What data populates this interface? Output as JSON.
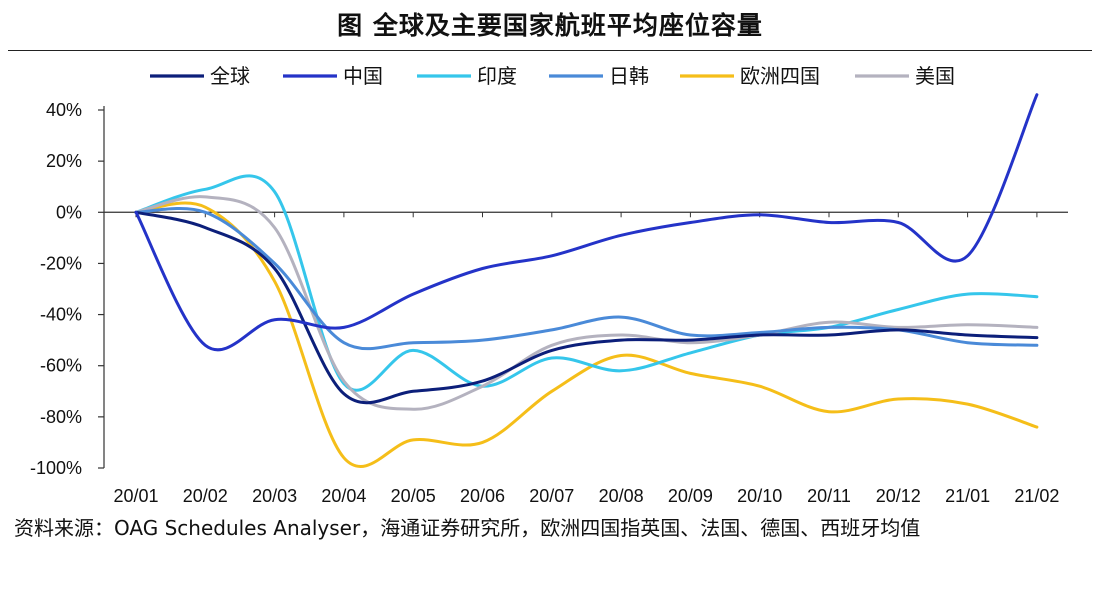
{
  "title": "图  全球及主要国家航班平均座位容量",
  "source": "资料来源：OAG Schedules Analyser，海通证券研究所，欧洲四国指英国、法国、德国、西班牙均值",
  "chart_data": {
    "type": "line",
    "x": [
      "20/01",
      "20/02",
      "20/03",
      "20/04",
      "20/05",
      "20/06",
      "20/07",
      "20/08",
      "20/09",
      "20/10",
      "20/11",
      "20/12",
      "21/01",
      "21/02"
    ],
    "ylim": [
      -100,
      40
    ],
    "yticks": [
      "-100%",
      "-80%",
      "-60%",
      "-40%",
      "-20%",
      "0%",
      "20%",
      "40%"
    ],
    "grid": false,
    "legend": "top",
    "series": [
      {
        "name": "全球",
        "color": "#0c1f7a",
        "values": [
          0,
          -6,
          -22,
          -71,
          -70,
          -66,
          -54,
          -50,
          -50,
          -48,
          -48,
          -46,
          -48,
          -49
        ]
      },
      {
        "name": "中国",
        "color": "#2433c8",
        "values": [
          0,
          -52,
          -42,
          -45,
          -32,
          -22,
          -17,
          -9,
          -4,
          -1,
          -4,
          -4,
          -17,
          46
        ]
      },
      {
        "name": "印度",
        "color": "#35c6eb",
        "values": [
          0,
          9,
          8,
          -67,
          -54,
          -68,
          -57,
          -62,
          -55,
          -48,
          -45,
          -38,
          -32,
          -33
        ]
      },
      {
        "name": "日韩",
        "color": "#4a8ad8",
        "values": [
          0,
          0,
          -20,
          -51,
          -51,
          -50,
          -46,
          -41,
          -48,
          -47,
          -45,
          -46,
          -51,
          -52
        ]
      },
      {
        "name": "欧洲四国",
        "color": "#f5be19",
        "values": [
          0,
          2,
          -27,
          -96,
          -89,
          -90,
          -70,
          -56,
          -63,
          -68,
          -78,
          -73,
          -75,
          -84
        ]
      },
      {
        "name": "美国",
        "color": "#b4b2bf",
        "values": [
          0,
          6,
          -6,
          -66,
          -77,
          -68,
          -52,
          -48,
          -51,
          -48,
          -43,
          -45,
          -44,
          -45
        ]
      }
    ]
  }
}
